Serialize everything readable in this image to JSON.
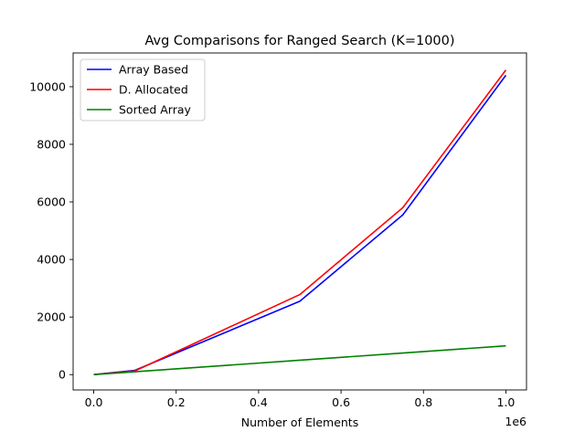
{
  "chart_data": {
    "type": "line",
    "title": "Avg Comparisons for Ranged Search (K=1000)",
    "xlabel": "Number of Elements",
    "ylabel": "",
    "x_offset_label": "1e6",
    "xlim": [
      -50000,
      1050000
    ],
    "ylim": [
      -532,
      11172
    ],
    "x": [
      0,
      100000,
      500000,
      750000,
      1000000
    ],
    "x_ticks": [
      0,
      200000,
      400000,
      600000,
      800000,
      1000000
    ],
    "x_tick_labels": [
      "0.0",
      "0.2",
      "0.4",
      "0.6",
      "0.8",
      "1.0"
    ],
    "y_ticks": [
      0,
      2000,
      4000,
      6000,
      8000,
      10000
    ],
    "y_tick_labels": [
      "0",
      "2000",
      "4000",
      "6000",
      "8000",
      "10000"
    ],
    "grid": false,
    "legend_position": "top-left",
    "series": [
      {
        "name": "Array Based",
        "color": "#0000ff",
        "values": [
          0,
          150,
          2550,
          5550,
          10400
        ]
      },
      {
        "name": "D. Allocated",
        "color": "#ff0000",
        "values": [
          0,
          130,
          2780,
          5800,
          10580
        ]
      },
      {
        "name": "Sorted Array",
        "color": "#008000",
        "values": [
          0,
          100,
          500,
          750,
          1000
        ]
      }
    ]
  }
}
